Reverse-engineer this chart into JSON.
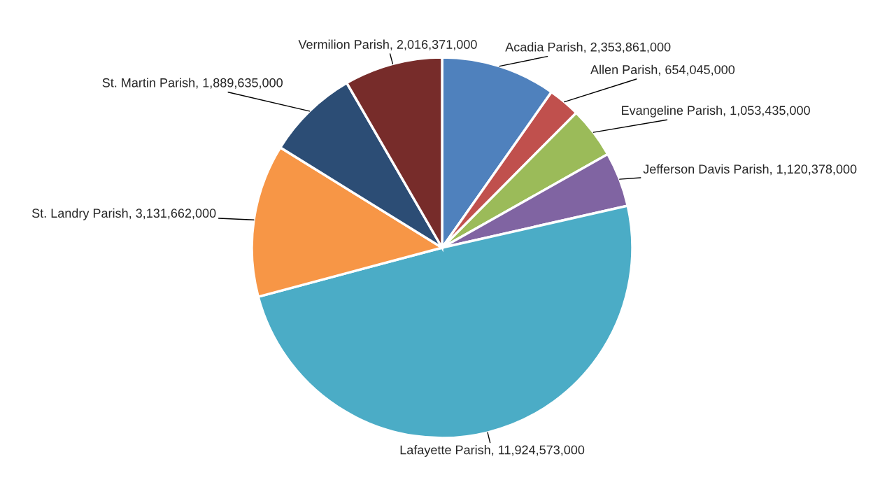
{
  "chart_data": {
    "type": "pie",
    "categories": [
      "Acadia Parish",
      "Allen Parish",
      "Evangeline Parish",
      "Jefferson Davis Parish",
      "Lafayette Parish",
      "St. Landry Parish",
      "St. Martin Parish",
      "Vermilion Parish"
    ],
    "value_labels": [
      "2,353,861,000",
      "654,045,000",
      "1,053,435,000",
      "1,120,378,000",
      "11,924,573,000",
      "3,131,662,000",
      "1,889,635,000",
      "2,016,371,000"
    ],
    "values": [
      2353861000,
      654045000,
      1053435000,
      1120378000,
      11924573000,
      3131662000,
      1889635000,
      2016371000
    ],
    "colors": [
      "#4f81bd",
      "#c0504d",
      "#9bbb59",
      "#8064a2",
      "#4bacc6",
      "#f79646",
      "#2c4d75",
      "#772c2a"
    ],
    "legend": false
  }
}
